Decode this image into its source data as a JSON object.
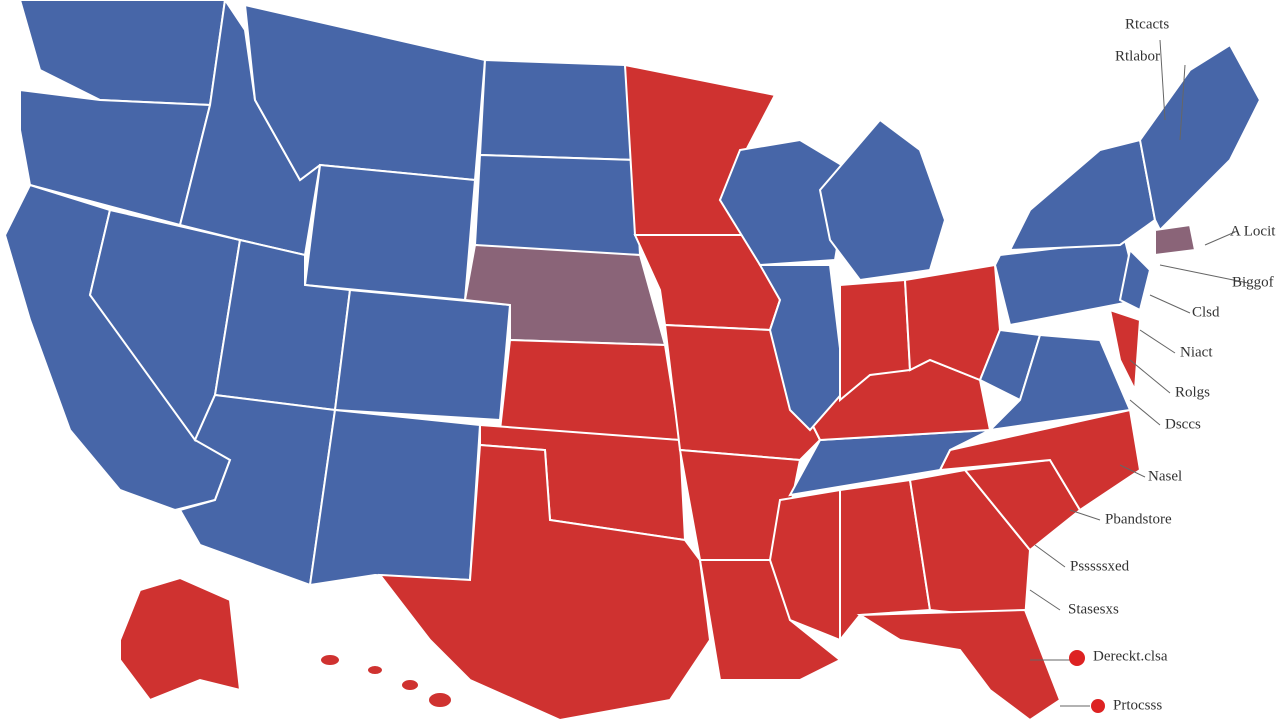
{
  "labels": [
    "Rtcacts",
    "Rtlabor",
    "A Locit",
    "Biggof",
    "Clsd",
    "Niact",
    "Rolgs",
    "Dsccs",
    "Nasel",
    "Pbandstore",
    "Psssssxed",
    "Stasesxs",
    "Dereckt.clsa",
    "Prtocsss"
  ]
}
